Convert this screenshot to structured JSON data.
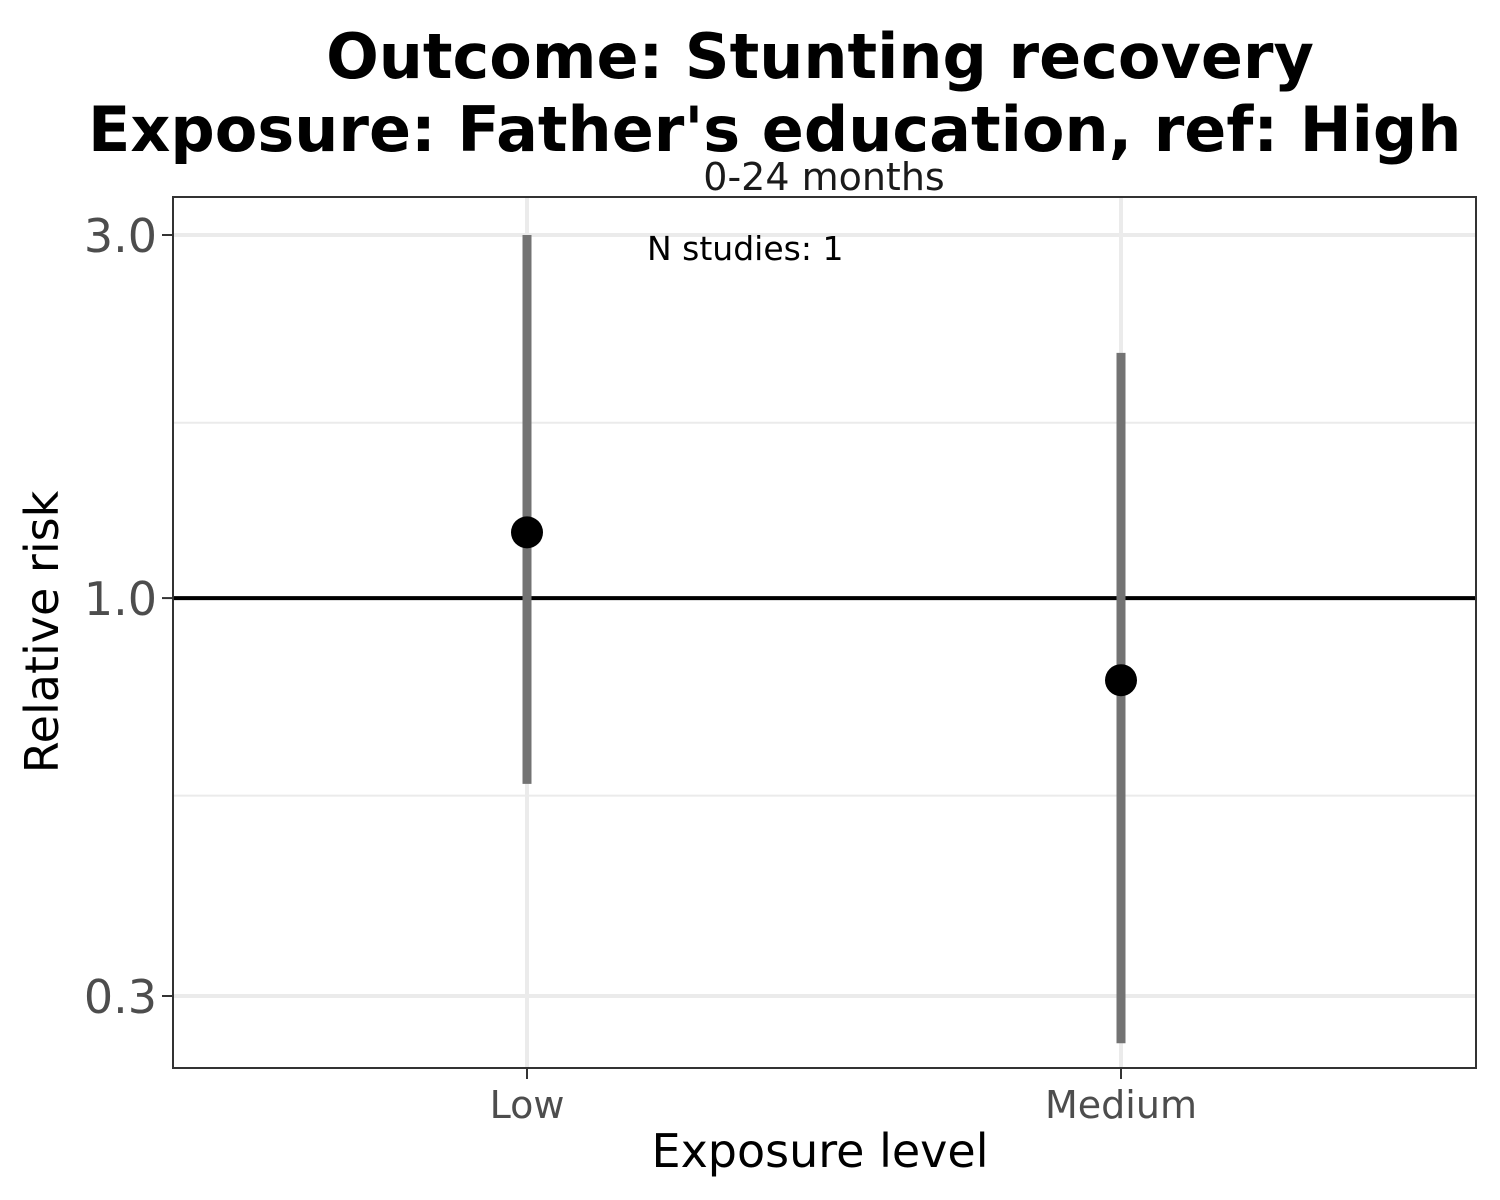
{
  "chart_data": {
    "type": "scatter",
    "title_line1": "Outcome: Stunting recovery",
    "title_line2": "Exposure: Father's education, ref: High",
    "facet_label": "0-24 months",
    "annotation": "N studies: 1",
    "xlabel": "Exposure level",
    "ylabel": "Relative risk",
    "y_scale": "log",
    "ylim": [
      0.25,
      3.3
    ],
    "y_ticks": [
      {
        "value": 0.3,
        "label": "0.3"
      },
      {
        "value": 1.0,
        "label": "1.0"
      },
      {
        "value": 3.0,
        "label": "3.0"
      }
    ],
    "y_minor_ticks": [
      0.55,
      1.7
    ],
    "reference_line": 1.0,
    "categories": [
      "Low",
      "Medium"
    ],
    "estimates": [
      1.22,
      0.78
    ],
    "ci_lower": [
      0.57,
      0.26
    ],
    "ci_upper": [
      3.0,
      2.1
    ],
    "colors": {
      "point": "#000000",
      "ci": "#737373",
      "reference": "#000000",
      "grid": "#ebebeb",
      "panel_border": "#333333"
    }
  }
}
